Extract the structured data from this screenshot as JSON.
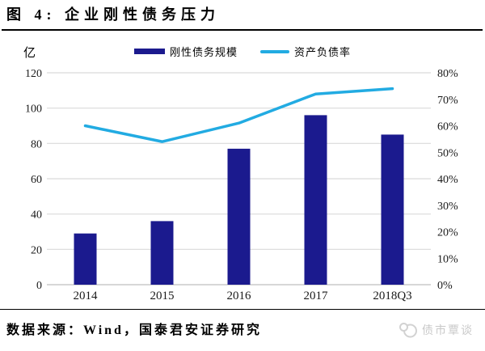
{
  "title": "图 4: 企业刚性债务压力",
  "left_axis": {
    "unit": "亿",
    "ticks": [
      "120",
      "100",
      "80",
      "60",
      "40",
      "20",
      "0"
    ]
  },
  "right_axis": {
    "ticks": [
      "80%",
      "70%",
      "60%",
      "50%",
      "40%",
      "30%",
      "20%",
      "10%",
      "0%"
    ]
  },
  "footer": {
    "source": "数据来源：Wind，国泰君安证券研究",
    "watermark": "债市覃谈"
  },
  "chart_data": {
    "type": "bar",
    "title": "企业刚性债务压力",
    "categories": [
      "2014",
      "2015",
      "2016",
      "2017",
      "2018Q3"
    ],
    "series": [
      {
        "name": "刚性债务规模",
        "type": "bar",
        "axis": "left",
        "unit": "亿",
        "values": [
          29,
          36,
          77,
          96,
          85
        ],
        "color": "#1B1A8E"
      },
      {
        "name": "资产负债率",
        "type": "line",
        "axis": "right",
        "unit": "%",
        "values": [
          60,
          54,
          61,
          72,
          74
        ],
        "color": "#22ABE2"
      }
    ],
    "left_ylim": [
      0,
      120
    ],
    "right_ylim": [
      0,
      80
    ],
    "grid": true,
    "grid_color": "#D9D9D9",
    "baseline_color": "#BFBFBF",
    "legend_position": "top"
  }
}
